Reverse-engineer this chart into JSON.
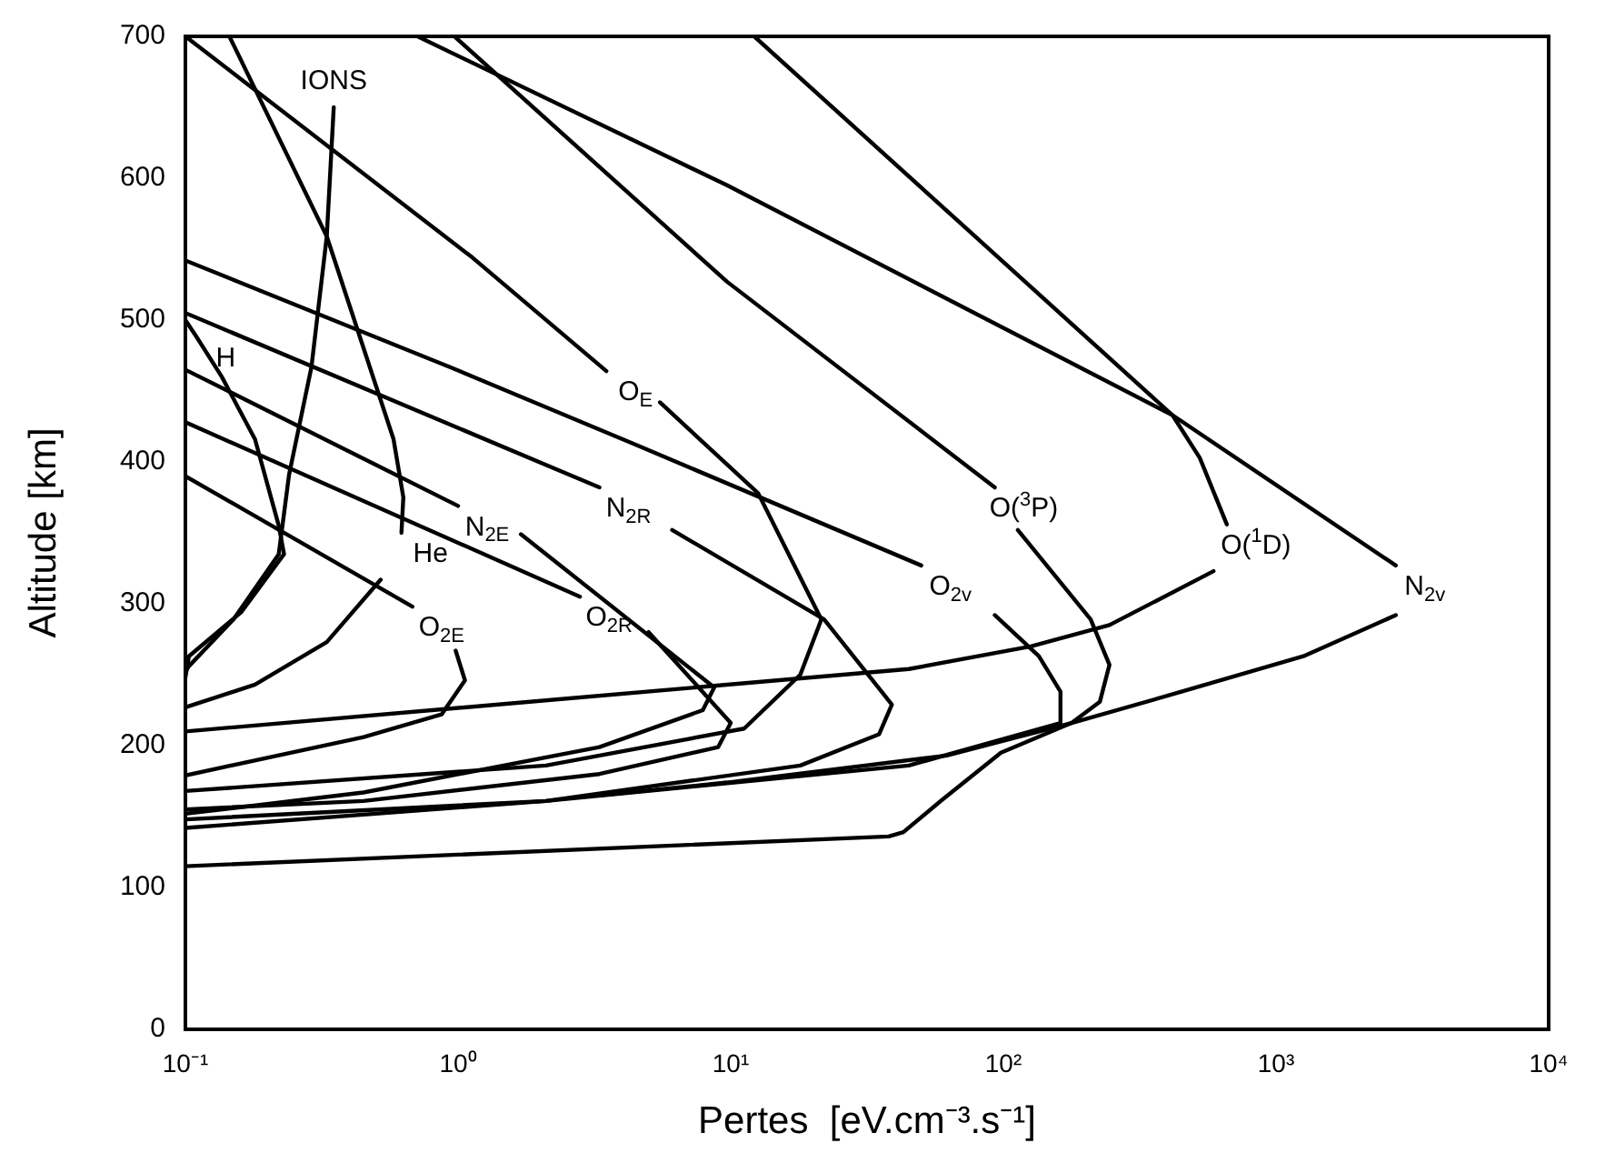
{
  "chart_data": {
    "type": "line",
    "xlabel": "Pertes  [eV.cm⁻³.s⁻¹]",
    "ylabel": "Altitude [km]",
    "log": "x",
    "grid": false,
    "legend": false,
    "marker": "none",
    "line_style": "solid",
    "xlim": [
      0.1,
      10000
    ],
    "xticks": [
      {
        "value": 0.1,
        "label": "10⁻¹"
      },
      {
        "value": 1,
        "label": "10⁰"
      },
      {
        "value": 10,
        "label": "10¹"
      },
      {
        "value": 100,
        "label": "10²"
      },
      {
        "value": 1000,
        "label": "10³"
      },
      {
        "value": 10000,
        "label": "10⁴"
      }
    ],
    "ylim": [
      0,
      700
    ],
    "yticks": [
      0,
      100,
      200,
      300,
      400,
      500,
      600,
      700
    ],
    "series": [
      {
        "color": "#000000",
        "x": [
          0.1,
          1.13,
          3.5
        ],
        "values": [
          700,
          544,
          464
        ]
      },
      {
        "color": "#000000",
        "x": [
          5.5,
          12.6,
          21.5,
          18,
          11.2,
          2.1,
          0.1
        ],
        "values": [
          442,
          378,
          289,
          250,
          212,
          186,
          168
        ]
      },
      {
        "color": "#000000",
        "x": [
          0.71,
          9.7,
          417,
          2750
        ],
        "values": [
          700,
          595,
          433,
          327
        ]
      },
      {
        "color": "#000000",
        "x": [
          2750,
          1260,
          450,
          178,
          98,
          59,
          43,
          38,
          0.1
        ],
        "values": [
          292,
          263,
          238,
          216,
          195,
          161,
          139,
          136,
          115
        ]
      },
      {
        "color": "#000000",
        "x": [
          12.2,
          417,
          525,
          660
        ],
        "values": [
          700,
          433,
          403,
          356
        ]
      },
      {
        "color": "#000000",
        "x": [
          590,
          245,
          126,
          45,
          0.1
        ],
        "values": [
          323,
          285,
          270,
          254,
          210
        ]
      },
      {
        "color": "#000000",
        "x": [
          0.97,
          9.7,
          93
        ],
        "values": [
          700,
          527,
          382
        ]
      },
      {
        "color": "#000000",
        "x": [
          113,
          209,
          245,
          226,
          178,
          62,
          9.7,
          3.3
        ],
        "values": [
          352,
          289,
          257,
          231,
          216,
          193,
          174,
          165
        ]
      },
      {
        "color": "#000000",
        "x": [
          0.1,
          0.93,
          4.5,
          50
        ],
        "values": [
          542,
          467,
          412,
          327
        ]
      },
      {
        "color": "#000000",
        "x": [
          93,
          135,
          162,
          162,
          45,
          2.1,
          0.1
        ],
        "values": [
          292,
          263,
          238,
          216,
          186,
          161,
          148
        ]
      },
      {
        "color": "#000000",
        "x": [
          0.1,
          3.3
        ],
        "values": [
          505,
          382
        ]
      },
      {
        "color": "#000000",
        "x": [
          6.1,
          22,
          39,
          35,
          18,
          2.1,
          0.1
        ],
        "values": [
          352,
          289,
          229,
          208,
          186,
          161,
          142
        ]
      },
      {
        "color": "#000000",
        "x": [
          0.1,
          1.0
        ],
        "values": [
          465,
          369
        ]
      },
      {
        "color": "#000000",
        "x": [
          1.7,
          8.7,
          7.9,
          3.3,
          0.45,
          0.1
        ],
        "values": [
          349,
          241,
          225,
          199,
          167,
          152
        ]
      },
      {
        "color": "#000000",
        "x": [
          0.1,
          2.8
        ],
        "values": [
          428,
          305
        ]
      },
      {
        "color": "#000000",
        "x": [
          5,
          10,
          9,
          3.3,
          0.45,
          0.1
        ],
        "values": [
          280,
          216,
          199,
          180,
          161,
          155
        ]
      },
      {
        "color": "#000000",
        "x": [
          0.1,
          0.68
        ],
        "values": [
          390,
          298
        ]
      },
      {
        "color": "#000000",
        "x": [
          0.98,
          1.06,
          0.87,
          0.45,
          0.1
        ],
        "values": [
          267,
          246,
          222,
          206,
          179
        ]
      },
      {
        "color": "#000000",
        "x": [
          0.145,
          0.33,
          0.58,
          0.63,
          0.62
        ],
        "values": [
          700,
          559,
          416,
          375,
          350
        ]
      },
      {
        "color": "#000000",
        "x": [
          0.52,
          0.33,
          0.18,
          0.1
        ],
        "values": [
          317,
          273,
          243,
          227
        ]
      },
      {
        "color": "#000000",
        "x": [
          0.35,
          0.33,
          0.29,
          0.24,
          0.22,
          0.15,
          0.103,
          0.1
        ],
        "values": [
          650,
          559,
          467,
          391,
          335,
          289,
          256,
          252
        ]
      },
      {
        "color": "#000000",
        "x": [
          0.1,
          0.11,
          0.136,
          0.18,
          0.22,
          0.23,
          0.16,
          0.103,
          0.1
        ],
        "values": [
          500,
          488,
          460,
          416,
          355,
          335,
          294,
          263,
          248
        ]
      }
    ],
    "annotations": [
      {
        "text": "IONS",
        "x": 0.35,
        "y": 650
      },
      {
        "text": "H",
        "x": 0.11,
        "y": 488
      },
      {
        "text": "O$_{E}$",
        "x": 3.5,
        "y": 464
      },
      {
        "text": "N$_{2E}$",
        "x": 1.0,
        "y": 369
      },
      {
        "text": "N$_{2R}$",
        "x": 3.3,
        "y": 382
      },
      {
        "text": "He",
        "x": 0.62,
        "y": 350
      },
      {
        "text": "O$_{2E}$",
        "x": 0.68,
        "y": 298
      },
      {
        "text": "O$_{2R}$",
        "x": 2.8,
        "y": 305
      },
      {
        "text": "O$_{2v}$",
        "x": 50,
        "y": 327
      },
      {
        "text": "O($^{3}$P)",
        "x": 93,
        "y": 382
      },
      {
        "text": "O($^{1}$D)",
        "x": 660,
        "y": 356
      },
      {
        "text": "N$_{2v}$",
        "x": 2750,
        "y": 327
      }
    ]
  }
}
